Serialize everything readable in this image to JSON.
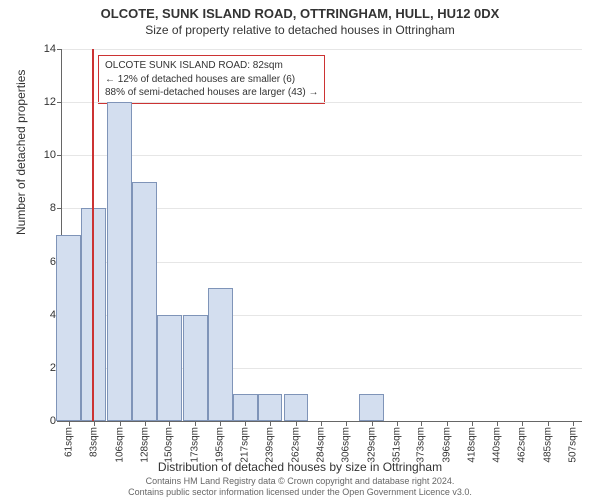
{
  "header": {
    "title": "OLCOTE, SUNK ISLAND ROAD, OTTRINGHAM, HULL, HU12 0DX",
    "subtitle": "Size of property relative to detached houses in Ottringham"
  },
  "chart": {
    "type": "bar",
    "ylabel": "Number of detached properties",
    "xlabel": "Distribution of detached houses by size in Ottringham",
    "ylim_max": 14,
    "ytick_step": 2,
    "background_color": "#ffffff",
    "grid_color": "#e6e6e6",
    "axis_color": "#666666",
    "bar_fill": "#d3deef",
    "bar_border": "#7f94b8",
    "marker_color": "#cc3333",
    "marker_position": 82,
    "x_min": 55,
    "x_max": 515,
    "bar_width_units": 22,
    "x_ticks": [
      61,
      83,
      106,
      128,
      150,
      173,
      195,
      217,
      239,
      262,
      284,
      306,
      329,
      351,
      373,
      396,
      418,
      440,
      462,
      485,
      507
    ],
    "x_tick_suffix": "sqm",
    "bars": [
      {
        "x": 61,
        "y": 7
      },
      {
        "x": 83,
        "y": 8
      },
      {
        "x": 106,
        "y": 12
      },
      {
        "x": 128,
        "y": 9
      },
      {
        "x": 150,
        "y": 4
      },
      {
        "x": 173,
        "y": 4
      },
      {
        "x": 195,
        "y": 5
      },
      {
        "x": 217,
        "y": 1
      },
      {
        "x": 239,
        "y": 1
      },
      {
        "x": 262,
        "y": 1
      },
      {
        "x": 284,
        "y": 0
      },
      {
        "x": 306,
        "y": 0
      },
      {
        "x": 329,
        "y": 1
      },
      {
        "x": 351,
        "y": 0
      },
      {
        "x": 373,
        "y": 0
      },
      {
        "x": 396,
        "y": 0
      },
      {
        "x": 418,
        "y": 0
      },
      {
        "x": 440,
        "y": 0
      },
      {
        "x": 462,
        "y": 0
      },
      {
        "x": 485,
        "y": 0
      },
      {
        "x": 507,
        "y": 0
      }
    ],
    "callout": {
      "line1": "OLCOTE SUNK ISLAND ROAD: 82sqm",
      "line2": "← 12% of detached houses are smaller (6)",
      "line3": "88% of semi-detached houses are larger (43) →"
    }
  },
  "footnote": {
    "line1": "Contains HM Land Registry data © Crown copyright and database right 2024.",
    "line2": "Contains public sector information licensed under the Open Government Licence v3.0."
  }
}
